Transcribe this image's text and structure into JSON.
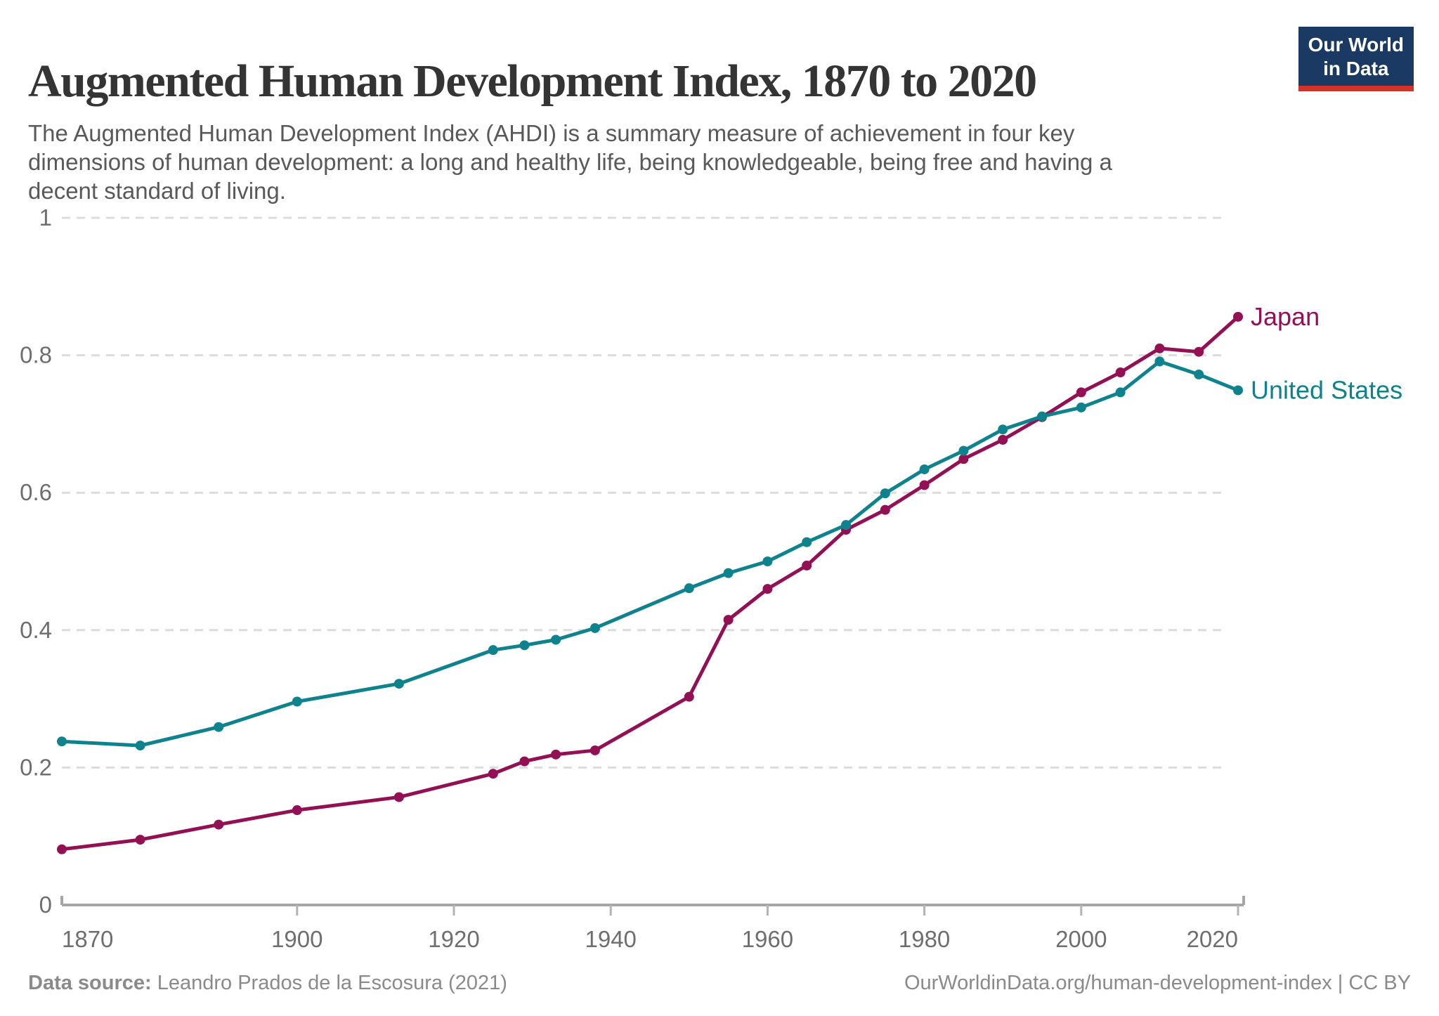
{
  "header": {
    "title": "Augmented Human Development Index, 1870 to 2020",
    "subtitle_lines": [
      "The Augmented Human Development Index (AHDI) is a summary measure of achievement in four key",
      "dimensions of human development: a long and healthy life, being knowledgeable, being free and having a",
      "decent standard of living."
    ],
    "logo": {
      "line1": "Our World",
      "line2": "in Data",
      "bg_color": "#1a3a63",
      "accent_color": "#d73026"
    }
  },
  "footer": {
    "source_label": "Data source:",
    "source_text": " Leandro Prados de la Escosura (2021)",
    "link_text": "OurWorldinData.org/human-development-index | CC BY"
  },
  "chart_data": {
    "type": "line",
    "title": "Augmented Human Development Index, 1870 to 2020",
    "xlabel": "",
    "ylabel": "",
    "x": [
      1870,
      1880,
      1890,
      1900,
      1913,
      1925,
      1929,
      1933,
      1938,
      1950,
      1955,
      1960,
      1965,
      1970,
      1975,
      1980,
      1985,
      1990,
      1995,
      2000,
      2005,
      2010,
      2015,
      2020
    ],
    "series": [
      {
        "name": "Japan",
        "color": "#931055",
        "values": [
          0.081,
          0.095,
          0.117,
          0.138,
          0.157,
          0.191,
          0.209,
          0.219,
          0.225,
          0.303,
          0.415,
          0.46,
          0.494,
          0.546,
          0.575,
          0.611,
          0.649,
          0.677,
          0.71,
          0.746,
          0.775,
          0.81,
          0.805,
          0.856
        ]
      },
      {
        "name": "United States",
        "color": "#0e838d",
        "values": [
          0.238,
          0.232,
          0.259,
          0.296,
          0.322,
          0.371,
          0.378,
          0.386,
          0.403,
          0.461,
          0.483,
          0.5,
          0.528,
          0.553,
          0.599,
          0.634,
          0.661,
          0.692,
          0.711,
          0.724,
          0.746,
          0.791,
          0.772,
          0.749
        ]
      }
    ],
    "xlim": [
      1870,
      2020
    ],
    "ylim": [
      0,
      1
    ],
    "xticks": [
      1870,
      1900,
      1920,
      1940,
      1960,
      1980,
      2000,
      2020
    ],
    "yticks": [
      0,
      0.2,
      0.4,
      0.6,
      0.8,
      1
    ],
    "ytick_labels": [
      "0",
      "0.2",
      "0.4",
      "0.6",
      "0.8",
      "1"
    ],
    "grid": "horizontal-dashed",
    "legend_position": "line-end-labels",
    "markers": true
  }
}
